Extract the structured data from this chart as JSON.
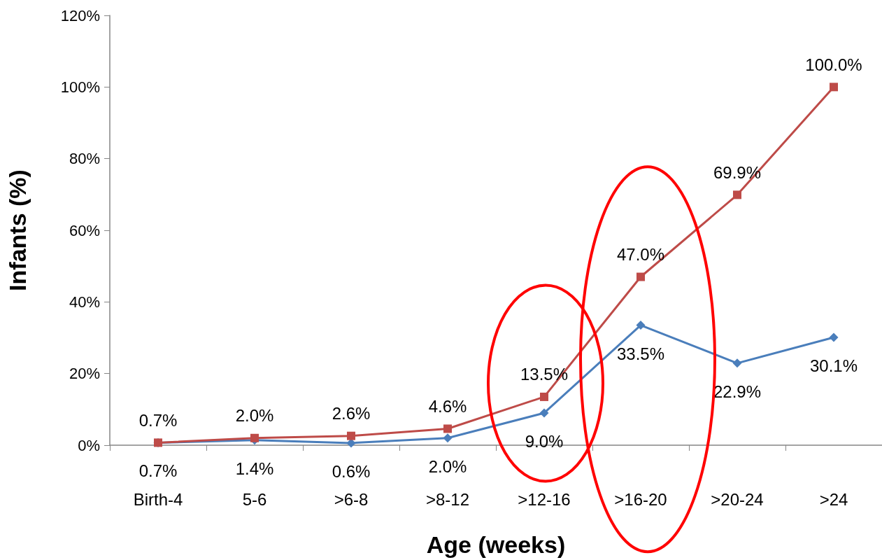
{
  "chart_data": {
    "type": "line",
    "xlabel": "Age (weeks)",
    "ylabel": "Infants (%)",
    "categories": [
      "Birth-4",
      "5-6",
      ">6-8",
      ">8-12",
      ">12-16",
      ">16-20",
      ">20-24",
      ">24"
    ],
    "series": [
      {
        "color": "#4a7ebb",
        "marker": "diamond",
        "values": [
          0.7,
          1.4,
          0.6,
          2.0,
          9.0,
          33.5,
          22.9,
          30.1
        ],
        "value_labels": [
          "0.7%",
          "1.4%",
          "0.6%",
          "2.0%",
          "9.0%",
          "33.5%",
          "22.9%",
          "30.1%"
        ]
      },
      {
        "color": "#be4b48",
        "marker": "square",
        "values": [
          0.7,
          2.0,
          2.6,
          4.6,
          13.5,
          47.0,
          69.9,
          100.0
        ],
        "value_labels": [
          "0.7%",
          "2.0%",
          "2.6%",
          "4.6%",
          "13.5%",
          "47.0%",
          "69.9%",
          "100.0%"
        ]
      }
    ],
    "ylim": [
      0,
      120
    ],
    "yticks": [
      {
        "value": 0,
        "label": "0%"
      },
      {
        "value": 20,
        "label": "20%"
      },
      {
        "value": 40,
        "label": "40%"
      },
      {
        "value": 60,
        "label": "60%"
      },
      {
        "value": 80,
        "label": "80%"
      },
      {
        "value": 100,
        "label": "100%"
      },
      {
        "value": 120,
        "label": "120%"
      }
    ],
    "grid": false,
    "line_style": "solid"
  }
}
